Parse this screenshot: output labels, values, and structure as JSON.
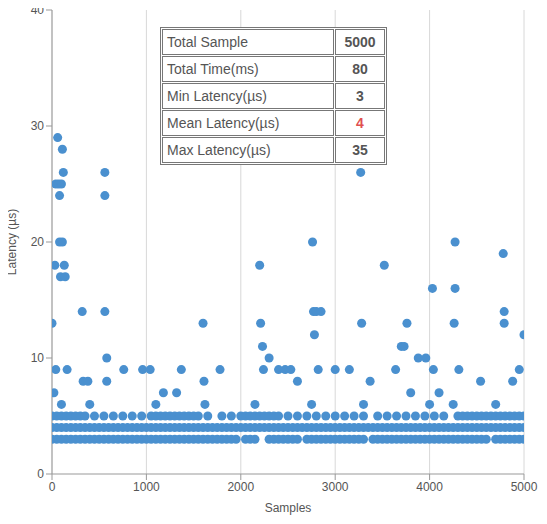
{
  "chart_data": {
    "type": "scatter",
    "xlabel": "Samples",
    "ylabel": "Latency (µs)",
    "color": "#4a90cf",
    "marker": "circle",
    "grid": true,
    "xlim": [
      0,
      5000
    ],
    "ylim": [
      0,
      40
    ],
    "xticks": [
      0,
      1000,
      2000,
      3000,
      4000,
      5000
    ],
    "yticks": [
      0,
      10,
      20,
      30,
      40
    ],
    "x": [
      0,
      50,
      100,
      150,
      200,
      250,
      300,
      350,
      400,
      450,
      500,
      550,
      600,
      650,
      700,
      750,
      800,
      850,
      900,
      950,
      1000,
      1050,
      1100,
      1150,
      1200,
      1250,
      1300,
      1350,
      1400,
      1450,
      1500,
      1550,
      1600,
      1650,
      1700,
      1750,
      1800,
      1850,
      1900,
      1950,
      2000,
      2050,
      2100,
      2150,
      2200,
      2250,
      2300,
      2350,
      2400,
      2450,
      2500,
      2550,
      2600,
      2650,
      2700,
      2750,
      2800,
      2850,
      2900,
      2950,
      3000,
      3050,
      3100,
      3150,
      3200,
      3250,
      3300,
      3350,
      3400,
      3450,
      3500,
      3550,
      3600,
      3650,
      3700,
      3750,
      3800,
      3850,
      3900,
      3950,
      4000,
      4050,
      4100,
      4150,
      4200,
      4250,
      4300,
      4350,
      4400,
      4450,
      4500,
      4550,
      4600,
      4650,
      4700,
      4750,
      4800,
      4850,
      4900,
      4950,
      5000,
      0,
      50,
      100,
      150,
      200,
      250,
      300,
      350,
      400,
      450,
      500,
      550,
      600,
      650,
      700,
      750,
      800,
      850,
      900,
      950,
      1000,
      1050,
      1100,
      1150,
      1200,
      1250,
      1300,
      1350,
      1400,
      1450,
      1500,
      1550,
      1600,
      1650,
      1700,
      1750,
      1800,
      1850,
      1900,
      1950,
      2050,
      2100,
      2150,
      2300,
      2350,
      2400,
      2450,
      2500,
      2550,
      2600,
      2700,
      2750,
      2800,
      2850,
      2900,
      2950,
      3000,
      3050,
      3100,
      3150,
      3200,
      3250,
      3300,
      3400,
      3450,
      3500,
      3550,
      3600,
      3650,
      3700,
      3750,
      3800,
      3850,
      3900,
      3950,
      4000,
      4050,
      4100,
      4150,
      4200,
      4250,
      4300,
      4350,
      4400,
      4450,
      4500,
      4550,
      4600,
      4700,
      4750,
      4800,
      4850,
      4900,
      4950,
      5000,
      0,
      50,
      100,
      150,
      200,
      250,
      300,
      350,
      450,
      550,
      650,
      750,
      850,
      950,
      1050,
      1100,
      1150,
      1200,
      1250,
      1300,
      1350,
      1400,
      1450,
      1500,
      1550,
      1650,
      1800,
      1900,
      2000,
      2050,
      2100,
      2150,
      2200,
      2250,
      2300,
      2350,
      2400,
      2500,
      2600,
      2700,
      2800,
      2900,
      3000,
      3100,
      3200,
      3300,
      3450,
      3550,
      3650,
      3750,
      3850,
      3950,
      4050,
      4150,
      4300,
      4350,
      4400,
      4450,
      4500,
      4550,
      4600,
      4650,
      4700,
      4750,
      4800,
      4850,
      4900,
      4950,
      5000,
      100,
      400,
      1100,
      1620,
      2150,
      2750,
      3300,
      4000,
      4250,
      4700,
      0,
      20,
      30,
      40,
      40,
      60,
      70,
      80,
      80,
      90,
      100,
      110,
      110,
      120,
      130,
      140,
      160,
      320,
      330,
      380,
      560,
      560,
      560,
      580,
      580,
      760,
      960,
      1040,
      1180,
      1320,
      1370,
      1600,
      1610,
      1780,
      2200,
      2210,
      2230,
      2240,
      2300,
      2400,
      2470,
      2530,
      2600,
      2760,
      2770,
      2780,
      2800,
      2850,
      2820,
      3000,
      3150,
      3270,
      3280,
      3370,
      3520,
      3640,
      3700,
      3730,
      3760,
      3800,
      3880,
      3960,
      4030,
      4040,
      4100,
      4270,
      4270,
      4260,
      4310,
      4540,
      4780,
      4790,
      4790,
      4880,
      5000,
      4950
    ],
    "values": [
      4,
      4,
      4,
      4,
      4,
      4,
      4,
      4,
      4,
      4,
      4,
      4,
      4,
      4,
      4,
      4,
      4,
      4,
      4,
      4,
      4,
      4,
      4,
      4,
      4,
      4,
      4,
      4,
      4,
      4,
      4,
      4,
      4,
      4,
      4,
      4,
      4,
      4,
      4,
      4,
      4,
      4,
      4,
      4,
      4,
      4,
      4,
      4,
      4,
      4,
      4,
      4,
      4,
      4,
      4,
      4,
      4,
      4,
      4,
      4,
      4,
      4,
      4,
      4,
      4,
      4,
      4,
      4,
      4,
      4,
      4,
      4,
      4,
      4,
      4,
      4,
      4,
      4,
      4,
      4,
      4,
      4,
      4,
      4,
      4,
      4,
      4,
      4,
      4,
      4,
      4,
      4,
      4,
      4,
      4,
      4,
      4,
      4,
      4,
      4,
      4,
      3,
      3,
      3,
      3,
      3,
      3,
      3,
      3,
      3,
      3,
      3,
      3,
      3,
      3,
      3,
      3,
      3,
      3,
      3,
      3,
      3,
      3,
      3,
      3,
      3,
      3,
      3,
      3,
      3,
      3,
      3,
      3,
      3,
      3,
      3,
      3,
      3,
      3,
      3,
      3,
      3,
      3,
      3,
      3,
      3,
      3,
      3,
      3,
      3,
      3,
      3,
      3,
      3,
      3,
      3,
      3,
      3,
      3,
      3,
      3,
      3,
      3,
      3,
      3,
      3,
      3,
      3,
      3,
      3,
      3,
      3,
      3,
      3,
      3,
      3,
      3,
      3,
      3,
      3,
      3,
      3,
      3,
      3,
      3,
      3,
      3,
      3,
      3,
      3,
      3,
      3,
      3,
      3,
      3,
      3,
      5,
      5,
      5,
      5,
      5,
      5,
      5,
      5,
      5,
      5,
      5,
      5,
      5,
      5,
      5,
      5,
      5,
      5,
      5,
      5,
      5,
      5,
      5,
      5,
      5,
      5,
      5,
      5,
      5,
      5,
      5,
      5,
      5,
      5,
      5,
      5,
      5,
      5,
      5,
      5,
      5,
      5,
      5,
      5,
      5,
      5,
      5,
      5,
      5,
      5,
      5,
      5,
      5,
      5,
      5,
      5,
      5,
      5,
      5,
      5,
      5,
      5,
      5,
      5,
      5,
      5,
      5,
      5,
      5,
      6,
      6,
      6,
      6,
      6,
      6,
      6,
      6,
      6,
      6,
      13,
      7,
      18,
      25,
      9,
      29,
      25,
      24,
      20,
      17,
      25,
      28,
      20,
      26,
      18,
      17,
      9,
      14,
      8,
      8,
      26,
      24,
      14,
      10,
      8,
      9,
      9,
      9,
      7,
      7,
      9,
      13,
      8,
      9,
      18,
      13,
      11,
      9,
      10,
      9,
      9,
      9,
      8,
      20,
      14,
      12,
      14,
      14,
      9,
      9,
      9,
      26,
      13,
      8,
      18,
      9,
      11,
      11,
      13,
      7,
      10,
      10,
      16,
      9,
      7,
      20,
      16,
      13,
      9,
      8,
      19,
      14,
      13,
      8,
      12,
      9
    ]
  },
  "table": {
    "rows": [
      [
        "Total Sample",
        5000
      ],
      [
        "Total Time(ms)",
        80
      ],
      [
        "Min Latency(µs)",
        3
      ],
      [
        "Mean Latency(µs)",
        4
      ],
      [
        "Max Latency(µs)",
        35
      ]
    ]
  }
}
